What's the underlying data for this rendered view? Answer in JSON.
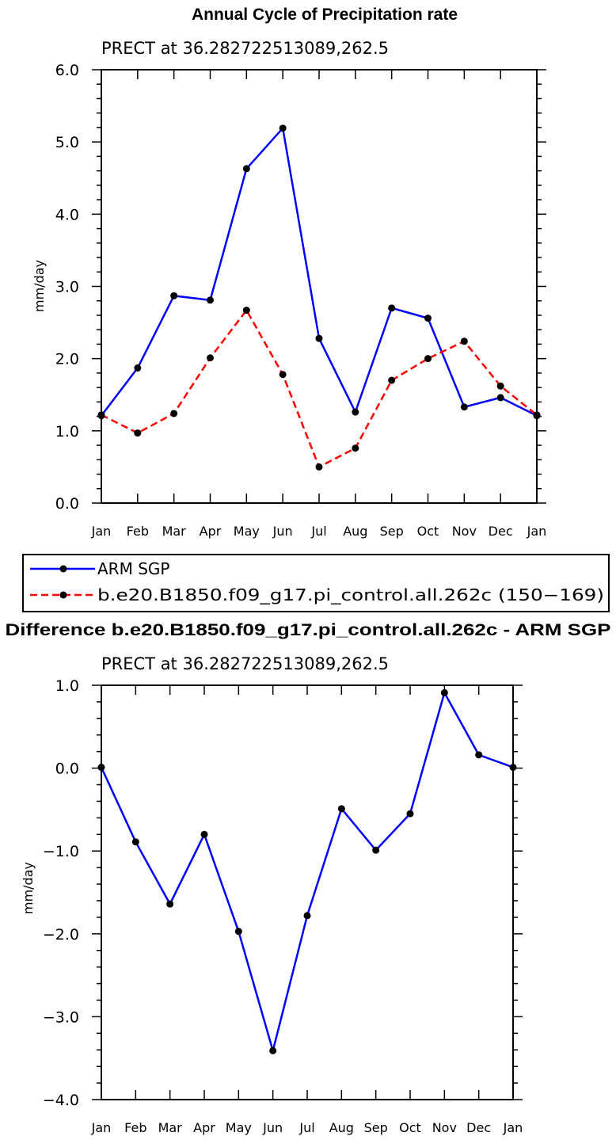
{
  "chart_data": [
    {
      "type": "line",
      "title": "Annual Cycle of Precipitation rate",
      "subtitle": "PRECT at 36.282722513089,262.5",
      "xlabel": "",
      "ylabel": "mm/day",
      "categories": [
        "Jan",
        "Feb",
        "Mar",
        "Apr",
        "May",
        "Jun",
        "Jul",
        "Aug",
        "Sep",
        "Oct",
        "Nov",
        "Dec",
        "Jan"
      ],
      "ylim": [
        0.0,
        6.0
      ],
      "yticks": [
        "0.0",
        "1.0",
        "2.0",
        "3.0",
        "4.0",
        "5.0",
        "6.0"
      ],
      "grid": false,
      "legend": "bottom",
      "series": [
        {
          "name": "ARM SGP",
          "color": "#0000ff",
          "dash": "solid",
          "values": [
            1.21,
            1.87,
            2.87,
            2.81,
            4.63,
            5.19,
            2.28,
            1.26,
            2.7,
            2.56,
            1.33,
            1.46,
            1.21
          ]
        },
        {
          "name": "b.e20.B1850.f09_g17.pi_control.all.262c (150−169)",
          "color": "#ff0000",
          "dash": "dashed",
          "values": [
            1.22,
            0.97,
            1.24,
            2.01,
            2.67,
            1.78,
            0.5,
            0.76,
            1.7,
            2.0,
            2.24,
            1.62,
            1.22
          ]
        }
      ]
    },
    {
      "type": "line",
      "title": "Difference b.e20.B1850.f09_g17.pi_control.all.262c - ARM SGP",
      "subtitle": "PRECT at 36.282722513089,262.5",
      "xlabel": "",
      "ylabel": "mm/day",
      "categories": [
        "Jan",
        "Feb",
        "Mar",
        "Apr",
        "May",
        "Jun",
        "Jul",
        "Aug",
        "Sep",
        "Oct",
        "Nov",
        "Dec",
        "Jan"
      ],
      "ylim": [
        -4.0,
        1.0
      ],
      "yticks": [
        "−4.0",
        "−3.0",
        "−2.0",
        "−1.0",
        "0.0",
        "1.0"
      ],
      "grid": false,
      "series": [
        {
          "name": "",
          "color": "#0000ff",
          "dash": "solid",
          "values": [
            0.01,
            -0.89,
            -1.64,
            -0.8,
            -1.97,
            -3.41,
            -1.78,
            -0.49,
            -0.99,
            -0.55,
            0.91,
            0.16,
            0.01
          ]
        }
      ]
    }
  ]
}
